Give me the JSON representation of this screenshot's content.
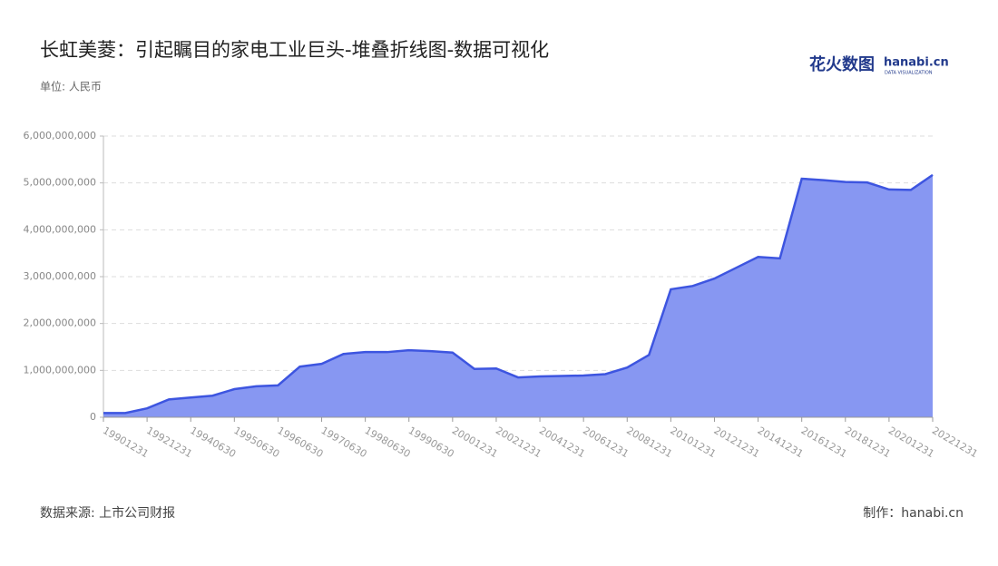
{
  "chart_data": {
    "type": "area",
    "title": "长虹美菱：引起瞩目的家电工业巨头-堆叠折线图-数据可视化",
    "unit_label": "单位: 人民币",
    "source": "数据来源: 上市公司财报",
    "credit": "制作：hanabi.cn",
    "logo": {
      "brand": "花火数图",
      "site": "hanabi.cn",
      "tagline": "DATA VISUALIZATION"
    },
    "categories": [
      "19901231",
      null,
      "19921231",
      null,
      "19940630",
      null,
      "19950630",
      null,
      "19960630",
      null,
      "19970630",
      null,
      "19980630",
      null,
      "19990630",
      null,
      "20001231",
      null,
      "20021231",
      null,
      "20041231",
      null,
      "20061231",
      null,
      "20081231",
      null,
      "20101231",
      null,
      "20121231",
      null,
      "20141231",
      null,
      "20161231",
      null,
      "20181231",
      null,
      "20201231",
      null,
      "20221231"
    ],
    "values": [
      90000000,
      90000000,
      190000000,
      380000000,
      420000000,
      460000000,
      600000000,
      660000000,
      680000000,
      1080000000,
      1140000000,
      1350000000,
      1390000000,
      1390000000,
      1430000000,
      1410000000,
      1380000000,
      1030000000,
      1040000000,
      850000000,
      870000000,
      880000000,
      890000000,
      920000000,
      1060000000,
      1330000000,
      2730000000,
      2800000000,
      2960000000,
      3190000000,
      3420000000,
      3390000000,
      5090000000,
      5060000000,
      5020000000,
      5010000000,
      4860000000,
      4850000000,
      5170000000
    ],
    "color": "#3d55e0",
    "fill": "#8797f2",
    "ylim": [
      0,
      6000000000
    ],
    "yticks": [
      0,
      {
        "value": 1000000000,
        "label": "1,000,000,000"
      },
      {
        "value": 2000000000,
        "label": "2,000,000,000"
      },
      {
        "value": 3000000000,
        "label": "3,000,000,000"
      },
      {
        "value": 4000000000,
        "label": "4,000,000,000"
      },
      {
        "value": 5000000000,
        "label": "5,000,000,000"
      },
      {
        "value": 6000000000,
        "label": "6,000,000,000"
      }
    ],
    "grid": true
  }
}
